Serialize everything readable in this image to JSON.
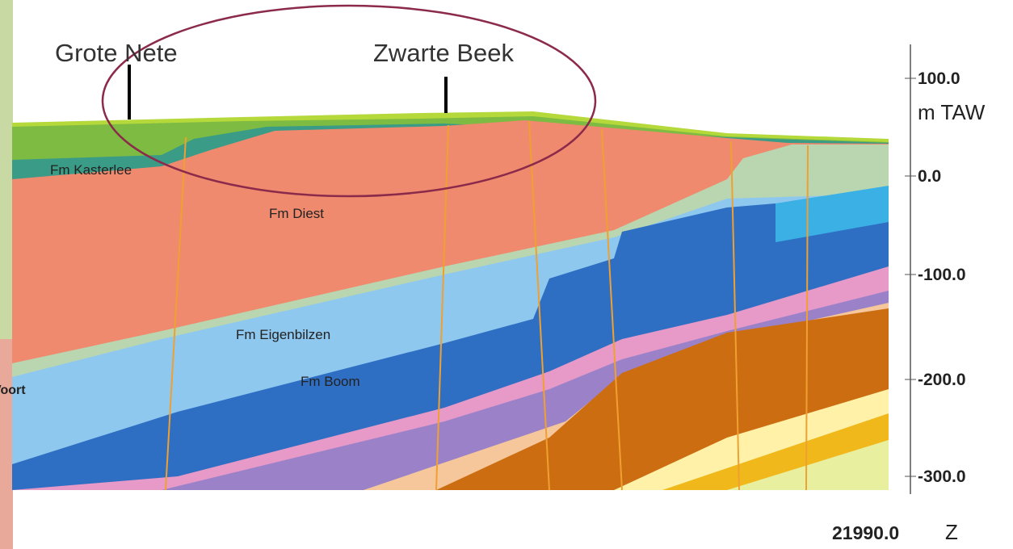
{
  "labels": {
    "rivers": [
      "Grote Nete",
      "Zwarte Beek"
    ],
    "formations": [
      "Fm Kasterlee",
      "Fm Diest",
      "Fm Eigenbilzen",
      "Fm Boom"
    ],
    "place": "Voort"
  },
  "axis": {
    "ticks": [
      "100.0",
      "0.0",
      "-100.0",
      "-200.0",
      "-300.0"
    ],
    "unit": "m TAW"
  },
  "footer": {
    "distance": "21990.0",
    "direction": "Z"
  }
}
